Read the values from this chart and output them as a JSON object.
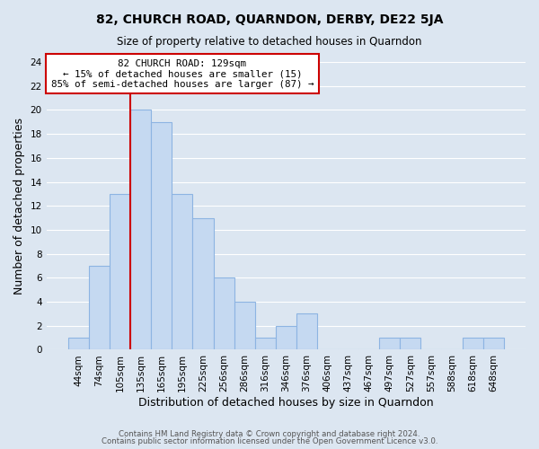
{
  "title": "82, CHURCH ROAD, QUARNDON, DERBY, DE22 5JA",
  "subtitle": "Size of property relative to detached houses in Quarndon",
  "xlabel": "Distribution of detached houses by size in Quarndon",
  "ylabel": "Number of detached properties",
  "footer_line1": "Contains HM Land Registry data © Crown copyright and database right 2024.",
  "footer_line2": "Contains public sector information licensed under the Open Government Licence v3.0.",
  "bin_labels": [
    "44sqm",
    "74sqm",
    "105sqm",
    "135sqm",
    "165sqm",
    "195sqm",
    "225sqm",
    "256sqm",
    "286sqm",
    "316sqm",
    "346sqm",
    "376sqm",
    "406sqm",
    "437sqm",
    "467sqm",
    "497sqm",
    "527sqm",
    "557sqm",
    "588sqm",
    "618sqm",
    "648sqm"
  ],
  "bar_values": [
    1,
    7,
    13,
    20,
    19,
    13,
    11,
    6,
    4,
    1,
    2,
    3,
    0,
    0,
    0,
    1,
    1,
    0,
    0,
    1,
    1
  ],
  "bar_color": "#c5d9f1",
  "bar_edge_color": "#8db4e2",
  "vline_color": "#cc0000",
  "vline_x_index": 3,
  "annotation_title": "82 CHURCH ROAD: 129sqm",
  "annotation_line1": "← 15% of detached houses are smaller (15)",
  "annotation_line2": "85% of semi-detached houses are larger (87) →",
  "annotation_box_facecolor": "#ffffff",
  "annotation_box_edgecolor": "#cc0000",
  "ylim": [
    0,
    24
  ],
  "yticks": [
    0,
    2,
    4,
    6,
    8,
    10,
    12,
    14,
    16,
    18,
    20,
    22,
    24
  ],
  "grid_color": "#ffffff",
  "bg_color": "#dce6f1",
  "title_fontsize": 10,
  "subtitle_fontsize": 8.5,
  "xlabel_fontsize": 9,
  "ylabel_fontsize": 9,
  "tick_label_fontsize": 7.5,
  "footer_fontsize": 6.2
}
